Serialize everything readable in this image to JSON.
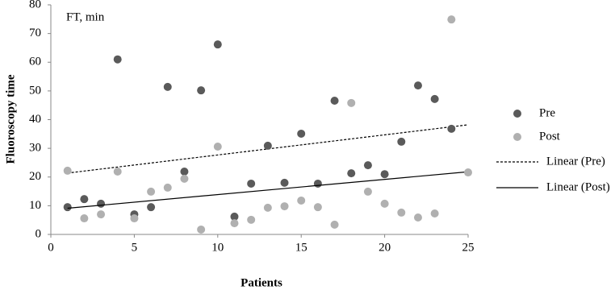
{
  "chart_data": {
    "type": "scatter",
    "annotation": "FT, min",
    "x_label": "Patients",
    "y_label": "Fluoroscopy time",
    "xlim": [
      0,
      25
    ],
    "xticks": [
      0,
      5,
      10,
      15,
      20,
      25
    ],
    "ylim": [
      0,
      80
    ],
    "yticks": [
      0,
      10,
      20,
      30,
      40,
      50,
      60,
      70,
      80
    ],
    "series": [
      {
        "name": "Pre",
        "color": "#5a5a5a",
        "x": [
          1,
          2,
          3,
          4,
          5,
          6,
          7,
          8,
          9,
          10,
          11,
          12,
          13,
          14,
          15,
          16,
          17,
          18,
          19,
          20,
          21,
          22,
          23,
          24
        ],
        "values": [
          9.5,
          12.3,
          10.7,
          61,
          7,
          9.5,
          51.4,
          21.9,
          50.2,
          66.2,
          6.2,
          17.7,
          30.9,
          18,
          35.1,
          17.7,
          46.6,
          21.3,
          24.1,
          21,
          32.3,
          51.9,
          47.2,
          36.8
        ],
        "trendline": {
          "name": "Linear (Pre)",
          "dashed": true
        }
      },
      {
        "name": "Post",
        "color": "#b0b0b0",
        "x": [
          1,
          2,
          3,
          4,
          5,
          6,
          7,
          8,
          9,
          10,
          11,
          12,
          13,
          14,
          15,
          16,
          17,
          18,
          19,
          20,
          21,
          22,
          23,
          24,
          25
        ],
        "values": [
          22.2,
          5.6,
          7,
          21.9,
          5.6,
          14.9,
          16.3,
          19.4,
          1.7,
          30.6,
          3.9,
          5.1,
          9.3,
          9.8,
          11.8,
          9.5,
          3.4,
          45.8,
          14.9,
          10.7,
          7.6,
          5.9,
          7.3,
          74.9,
          21.6
        ],
        "trendline": {
          "name": "Linear (Post)",
          "dashed": false
        }
      }
    ]
  }
}
